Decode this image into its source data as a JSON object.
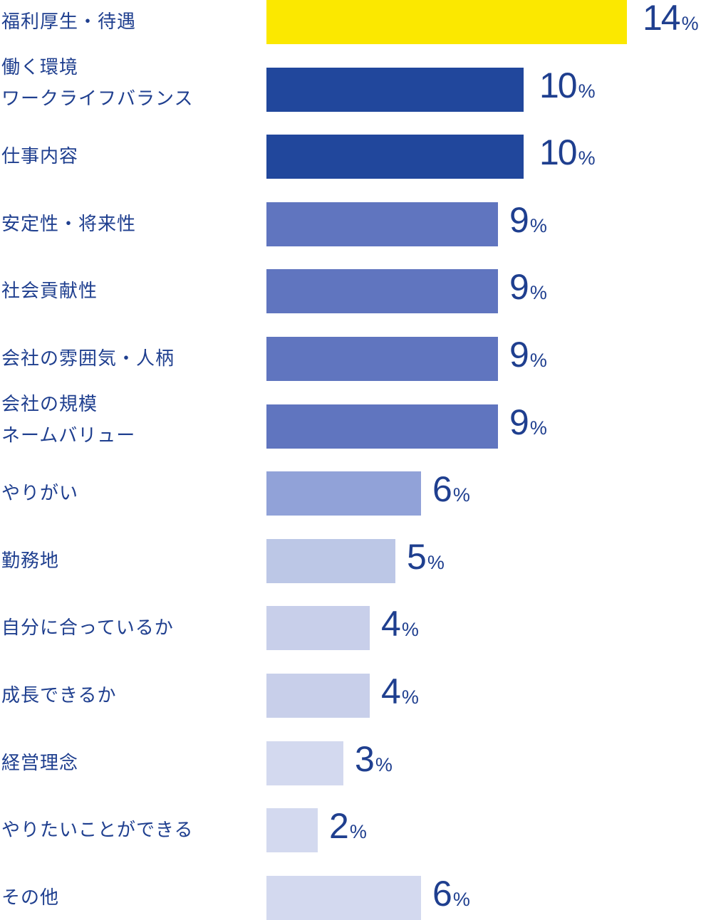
{
  "chart_data": {
    "type": "bar",
    "orientation": "horizontal",
    "unit": "%",
    "categories": [
      [
        "福利厚生・待遇"
      ],
      [
        "働く環境",
        "ワークライフバランス"
      ],
      [
        "仕事内容"
      ],
      [
        "安定性・将来性"
      ],
      [
        "社会貢献性"
      ],
      [
        "会社の雰囲気・人柄"
      ],
      [
        "会社の規模",
        "ネームバリュー"
      ],
      [
        "やりがい"
      ],
      [
        "勤務地"
      ],
      [
        "自分に合っているか"
      ],
      [
        "成長できるか"
      ],
      [
        "経営理念"
      ],
      [
        "やりたいことができる"
      ],
      [
        "その他"
      ]
    ],
    "values": [
      14,
      10,
      10,
      9,
      9,
      9,
      9,
      6,
      5,
      4,
      4,
      3,
      2,
      6
    ],
    "bar_colors": [
      "#fbe800",
      "#21479c",
      "#21479c",
      "#6075bf",
      "#6075bf",
      "#6075bf",
      "#6075bf",
      "#91a2d8",
      "#bcc7e6",
      "#c8cfea",
      "#c8cfea",
      "#d3d9ef",
      "#d3d9ef",
      "#d3d9ef"
    ],
    "text_color": "#1f3f8f",
    "xlim": [
      0,
      14
    ],
    "grid": false,
    "legend": "none"
  }
}
